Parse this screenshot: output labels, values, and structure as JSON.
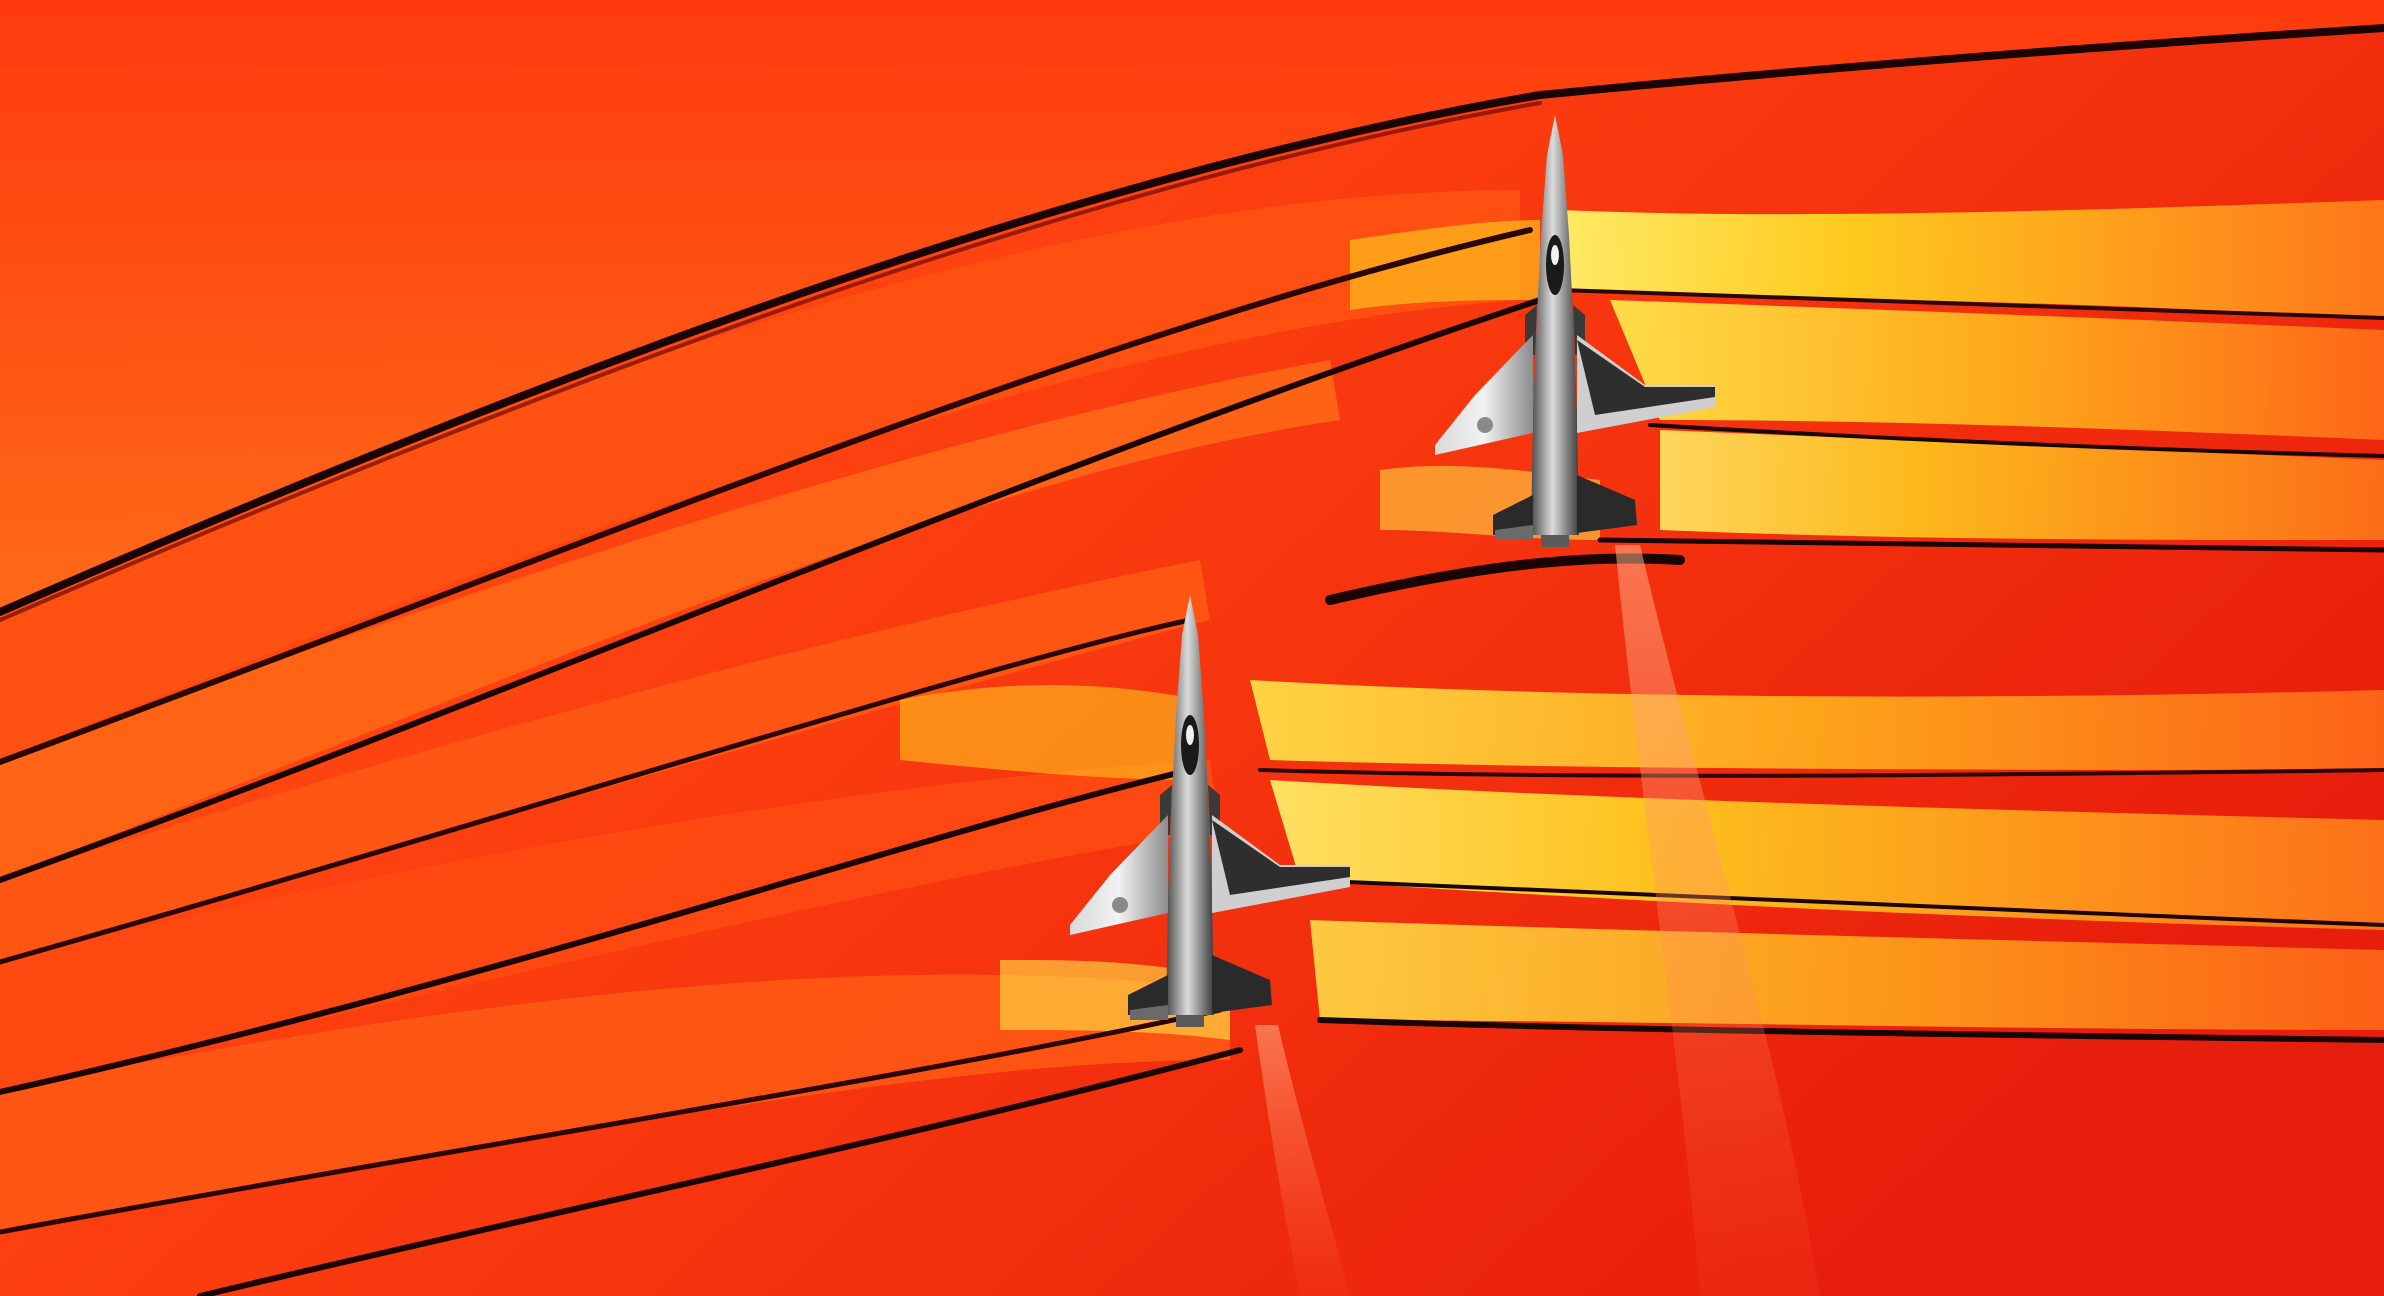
{
  "image": {
    "icon": "supersonic-jets-schlieren-image",
    "palette": {
      "background_deep": "#e21f0e",
      "background_mid": "#ff4a12",
      "background_warm": "#ff7a1a",
      "highlight": "#ffd21f",
      "highlight_bright": "#fff36a",
      "shock_dark": "#1b0504",
      "shock_mid": "#6e0a06",
      "jet_light": "#e8e8e8",
      "jet_mid": "#9a9a9a",
      "jet_dark": "#2a2a2a"
    }
  }
}
